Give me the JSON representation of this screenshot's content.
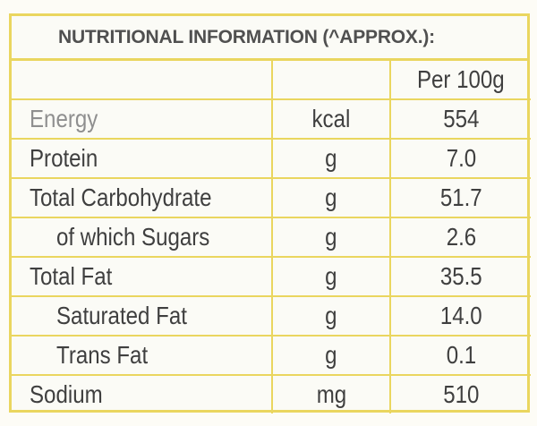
{
  "title": "NUTRITIONAL INFORMATION (^APPROX.):",
  "header": {
    "col1": "",
    "col2": "",
    "col3": "Per 100g"
  },
  "rows": [
    {
      "label": "Energy",
      "unit": "kcal",
      "value": "554",
      "indent": false
    },
    {
      "label": "Protein",
      "unit": "g",
      "value": "7.0",
      "indent": false
    },
    {
      "label": "Total Carbohydrate",
      "unit": "g",
      "value": "51.7",
      "indent": false
    },
    {
      "label": "of which Sugars",
      "unit": "g",
      "value": "2.6",
      "indent": true
    },
    {
      "label": "Total Fat",
      "unit": "g",
      "value": "35.5",
      "indent": false
    },
    {
      "label": "Saturated Fat",
      "unit": "g",
      "value": "14.0",
      "indent": true
    },
    {
      "label": "Trans Fat",
      "unit": "g",
      "value": "0.1",
      "indent": true
    },
    {
      "label": "Sodium",
      "unit": "mg",
      "value": "510",
      "indent": false
    }
  ],
  "colors": {
    "border": "#ead65f",
    "text": "#3f3f3f",
    "title_text": "#505050"
  }
}
